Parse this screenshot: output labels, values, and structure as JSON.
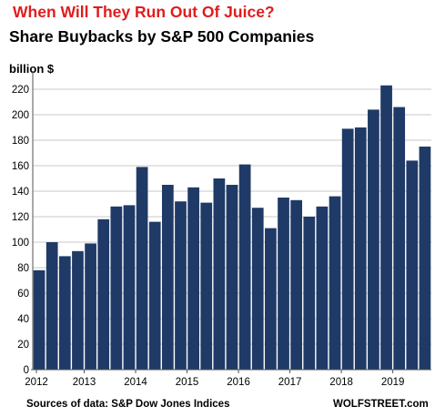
{
  "header": {
    "title": "When Will They Run Out Of Juice?",
    "subtitle": "Share Buybacks by S&P 500 Companies",
    "unit_label": "billion $"
  },
  "footer": {
    "source": "Sources of data: S&P Dow Jones Indices",
    "brand": "WOLFSTREET.com"
  },
  "colors": {
    "bar": "#1f3a66",
    "grid": "#c8c8c8",
    "axis": "#555555"
  },
  "chart_data": {
    "type": "bar",
    "title": "When Will They Run Out Of Juice?",
    "subtitle": "Share Buybacks by S&P 500 Companies",
    "ylabel": "billion $",
    "xlabel": "",
    "ylim": [
      0,
      230
    ],
    "yticks": [
      0,
      20,
      40,
      60,
      80,
      100,
      120,
      140,
      160,
      180,
      200,
      220
    ],
    "grid": true,
    "year_labels": [
      "2012",
      "2013",
      "2014",
      "2015",
      "2016",
      "2017",
      "2018",
      "2019"
    ],
    "categories": [
      "2012Q1",
      "2012Q2",
      "2012Q3",
      "2012Q4",
      "2013Q1",
      "2013Q2",
      "2013Q3",
      "2013Q4",
      "2014Q1",
      "2014Q2",
      "2014Q3",
      "2014Q4",
      "2015Q1",
      "2015Q2",
      "2015Q3",
      "2015Q4",
      "2016Q1",
      "2016Q2",
      "2016Q3",
      "2016Q4",
      "2017Q1",
      "2017Q2",
      "2017Q3",
      "2017Q4",
      "2018Q1",
      "2018Q2",
      "2018Q3",
      "2018Q4",
      "2019Q1",
      "2019Q2",
      "2019Q3"
    ],
    "values": [
      78,
      100,
      89,
      93,
      99,
      118,
      128,
      129,
      159,
      116,
      145,
      132,
      143,
      131,
      150,
      145,
      161,
      127,
      111,
      135,
      133,
      120,
      128,
      136,
      189,
      190,
      204,
      223,
      206,
      164,
      175
    ]
  }
}
